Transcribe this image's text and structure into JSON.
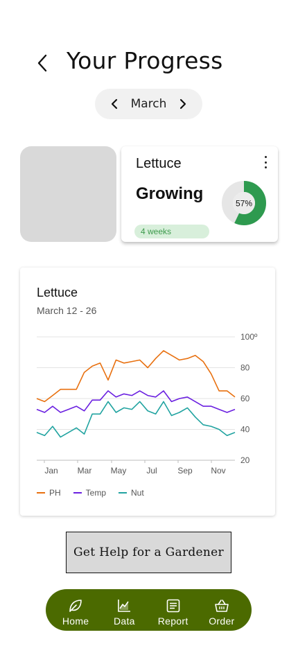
{
  "header": {
    "title": "Your Progress",
    "back_icon": "chevron-left-icon"
  },
  "month_selector": {
    "label": "March",
    "prev_icon": "chevron-left-icon",
    "next_icon": "chevron-right-icon"
  },
  "plant_card": {
    "name": "Lettuce",
    "status": "Growing",
    "weeks": "4 weeks",
    "progress": 57,
    "progress_label": "57%",
    "progress_color": "#2e9a4f",
    "track_color": "#e6e6e6"
  },
  "chart_card": {
    "title": "Lettuce",
    "subtitle": "March 12 - 26"
  },
  "chart_data": {
    "type": "line",
    "x_ticks": [
      "Jan",
      "Mar",
      "May",
      "Jul",
      "Sep",
      "Nov"
    ],
    "y_ticks": [
      "20",
      "40",
      "60",
      "80",
      "100º"
    ],
    "ylim": [
      20,
      100
    ],
    "grid": true,
    "legend_position": "bottom-left",
    "series": [
      {
        "name": "PH",
        "color": "#e8700f",
        "values": [
          60,
          58,
          62,
          66,
          66,
          66,
          77,
          81,
          83,
          72,
          85,
          83,
          84,
          85,
          80,
          86,
          91,
          88,
          85,
          86,
          88,
          84,
          76,
          65,
          65,
          61
        ]
      },
      {
        "name": "Temp",
        "color": "#6a1fe0",
        "values": [
          53,
          51,
          55,
          51,
          53,
          55,
          52,
          59,
          59,
          65,
          61,
          63,
          62,
          65,
          62,
          61,
          65,
          58,
          60,
          61,
          58,
          55,
          55,
          53,
          51,
          53
        ]
      },
      {
        "name": "Nut",
        "color": "#20a3a0",
        "values": [
          38,
          36,
          42,
          35,
          38,
          41,
          37,
          50,
          50,
          58,
          51,
          54,
          53,
          58,
          52,
          50,
          58,
          49,
          51,
          54,
          48,
          43,
          42,
          40,
          36,
          38
        ]
      }
    ]
  },
  "help_button": {
    "label": "Get Help for a Gardener"
  },
  "bottom_nav": {
    "items": [
      {
        "label": "Home",
        "icon": "leaf-icon"
      },
      {
        "label": "Data",
        "icon": "chart-icon"
      },
      {
        "label": "Report",
        "icon": "document-icon"
      },
      {
        "label": "Order",
        "icon": "basket-icon"
      }
    ]
  }
}
